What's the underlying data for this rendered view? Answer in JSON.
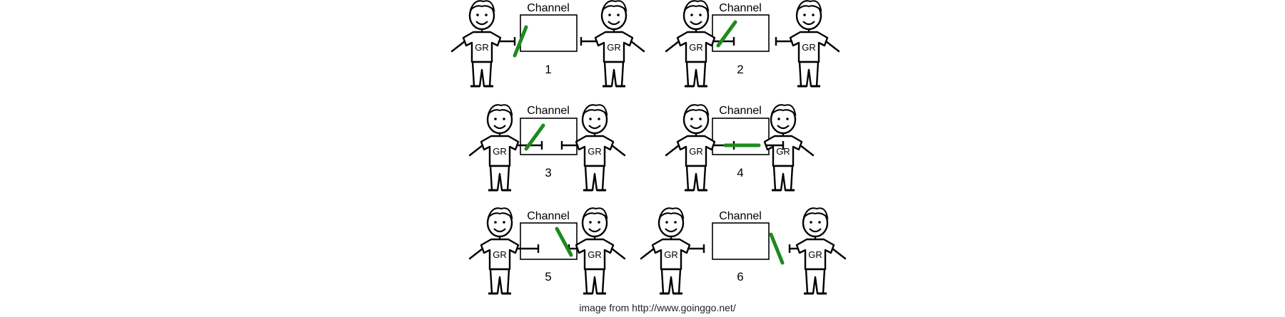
{
  "panels": [
    {
      "number": "1",
      "channel_label": "Channel",
      "left_shirt": "GR",
      "right_shirt": "GR",
      "stick": "left-hand-outside"
    },
    {
      "number": "2",
      "channel_label": "Channel",
      "left_shirt": "GR",
      "right_shirt": "GR",
      "stick": "channel-left"
    },
    {
      "number": "3",
      "channel_label": "Channel",
      "left_shirt": "GR",
      "right_shirt": "GR",
      "stick": "channel-left"
    },
    {
      "number": "4",
      "channel_label": "Channel",
      "left_shirt": "GR",
      "right_shirt": "GR",
      "stick": "channel-horizontal"
    },
    {
      "number": "5",
      "channel_label": "Channel",
      "left_shirt": "GR",
      "right_shirt": "GR",
      "stick": "channel-right"
    },
    {
      "number": "6",
      "channel_label": "Channel",
      "left_shirt": "GR",
      "right_shirt": "GR",
      "stick": "right-hand-outside"
    }
  ],
  "credit": "image from http://www.goinggo.net/",
  "colors": {
    "stick": "#1e8a1e",
    "line": "#000000",
    "background": "#ffffff"
  }
}
